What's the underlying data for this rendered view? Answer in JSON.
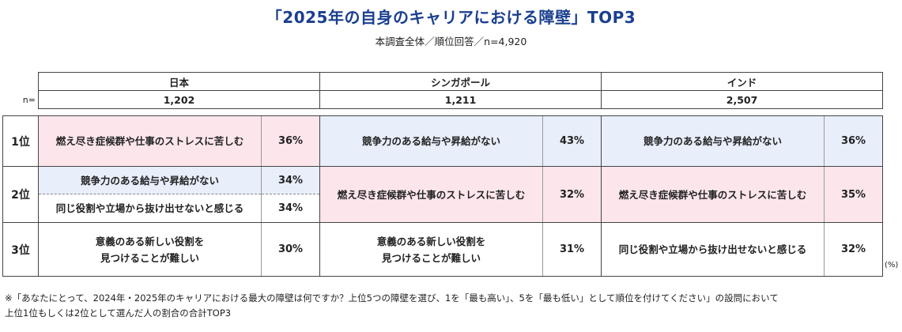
{
  "title": "「2025年の自身のキャリアにおける障壁」TOP3",
  "subtitle": "本調査全体／順位回答／n=4,920",
  "n_label": "n=",
  "countries": [
    {
      "name": "日本",
      "n": "1,202"
    },
    {
      "name": "シンガポール",
      "n": "1,211"
    },
    {
      "name": "インド",
      "n": "2,507"
    }
  ],
  "ranks": [
    "1位",
    "2位",
    "3位"
  ],
  "japan": {
    "r1": {
      "item": "燃え尽き症候群や仕事のストレスに苦しむ",
      "pct": "36%"
    },
    "r2a": {
      "item": "競争力のある給与や昇給がない",
      "pct": "34%"
    },
    "r2b": {
      "item": "同じ役割や立場から抜け出せないと感じる",
      "pct": "34%"
    },
    "r3": {
      "item_line1": "意義のある新しい役割を",
      "item_line2": "見つけることが難しい",
      "pct": "30%"
    }
  },
  "singapore": {
    "r1": {
      "item": "競争力のある給与や昇給がない",
      "pct": "43%"
    },
    "r2": {
      "item": "燃え尽き症候群や仕事のストレスに苦しむ",
      "pct": "32%"
    },
    "r3": {
      "item_line1": "意義のある新しい役割を",
      "item_line2": "見つけることが難しい",
      "pct": "31%"
    }
  },
  "india": {
    "r1": {
      "item": "競争力のある給与や昇給がない",
      "pct": "36%"
    },
    "r2": {
      "item": "燃え尽き症候群や仕事のストレスに苦しむ",
      "pct": "35%"
    },
    "r3": {
      "item": "同じ役割や立場から抜け出せないと感じる",
      "pct": "32%"
    }
  },
  "unit": "(%)",
  "footnote_line1": "※「あなたにとって、2024年・2025年のキャリアにおける最大の障壁は何ですか？上位5つの障壁を選び、1を「最も高い」、5を「最も低い」として順位を付けてください」の設問において",
  "footnote_line2": "上位1位もしくは2位として選んだ人の割合の合計TOP3",
  "colors": {
    "title": "#1a3f8f",
    "pink": "#fce6ec",
    "blue": "#e8eefa"
  }
}
